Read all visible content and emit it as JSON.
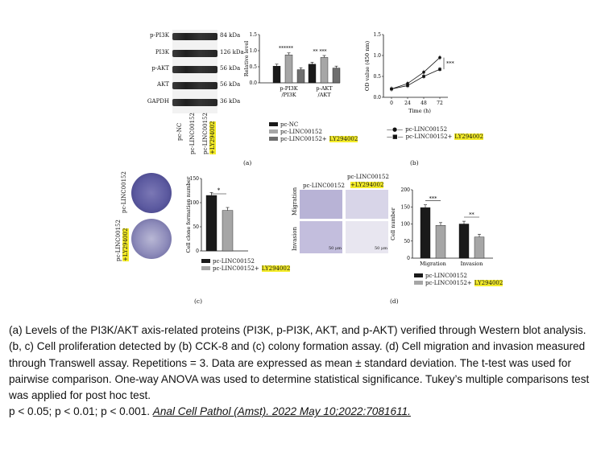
{
  "colors": {
    "black_bar": "#1a1a1a",
    "gray_bar": "#a6a6a6",
    "dark_bar": "#6e6e6e",
    "highlight": "#f4ec2a"
  },
  "panel_a": {
    "label": "(a)",
    "blots": [
      {
        "name": "p-PI3K",
        "size": "84 kDa"
      },
      {
        "name": "PI3K",
        "size": "126 kDa"
      },
      {
        "name": "p-AKT",
        "size": "56 kDa"
      },
      {
        "name": "AKT",
        "size": "56 kDa"
      },
      {
        "name": "GAPDH",
        "size": "36 kDa"
      }
    ],
    "lanes": [
      "pc-NC",
      "pc-LINC00152",
      "pc-LINC00152",
      "+LY294002"
    ],
    "legend": [
      "pc-NC",
      "pc-LINC00152",
      "pc-LINC00152+",
      "LY294002"
    ]
  },
  "panel_b": {
    "label": "(b)",
    "legend": [
      "pc-LINC00152",
      "pc-LINC00152+",
      "LY294002"
    ]
  },
  "panel_c": {
    "label": "(c)",
    "row_labels": [
      "pc-LINC00152",
      "pc-LINC00152",
      "+LY294002"
    ],
    "legend": [
      "pc-LINC00152",
      "pc-LINC00152+",
      "LY294002"
    ]
  },
  "panel_d": {
    "label": "(d)",
    "col_labels": [
      "pc-LINC00152",
      "pc-LINC00152",
      "+LY294002"
    ],
    "row_labels": [
      "Migration",
      "Invasion"
    ],
    "scale": "50 μm",
    "legend": [
      "pc-LINC00152",
      "pc-LINC00152+",
      "LY294002"
    ]
  },
  "chart_data": [
    {
      "id": "a-bar",
      "type": "bar",
      "categories": [
        "p-PI3K\n/PI3K",
        "p-AKT\n/AKT"
      ],
      "series": [
        {
          "name": "pc-NC",
          "values": [
            0.52,
            0.58
          ]
        },
        {
          "name": "pc-LINC00152",
          "values": [
            0.87,
            0.79
          ]
        },
        {
          "name": "pc-LINC00152+LY294002",
          "values": [
            0.41,
            0.46
          ]
        }
      ],
      "ylabel": "Relative level",
      "ylim": [
        0,
        1.5
      ],
      "yticks": [
        0,
        0.5,
        1.0,
        1.5
      ],
      "tick_labels": [
        "0.0",
        "0.5",
        "1.0",
        "1.5"
      ],
      "annotations": [
        "***",
        "***",
        "**",
        "***"
      ]
    },
    {
      "id": "b-line",
      "type": "line",
      "x": [
        0,
        24,
        48,
        72
      ],
      "xlabel": "Time (h)",
      "ylabel": "OD value (450 nm)",
      "ylim": [
        0,
        1.5
      ],
      "yticks": [
        0,
        0.5,
        1.0,
        1.5
      ],
      "tick_labels": [
        "0.0",
        "0.5",
        "1.0",
        "1.5"
      ],
      "series": [
        {
          "name": "pc-LINC00152",
          "values": [
            0.2,
            0.33,
            0.6,
            0.95
          ]
        },
        {
          "name": "pc-LINC00152+LY294002",
          "values": [
            0.2,
            0.28,
            0.5,
            0.67
          ]
        }
      ],
      "annotations": [
        "***"
      ]
    },
    {
      "id": "c-bar",
      "type": "bar",
      "categories": [
        "pc-LINC00152",
        "pc-LINC00152+LY294002"
      ],
      "values": [
        115,
        84
      ],
      "ylabel": "Cell clone formation number",
      "ylim": [
        0,
        150
      ],
      "yticks": [
        0,
        50,
        100,
        150
      ],
      "annotations": [
        "*"
      ]
    },
    {
      "id": "d-bar",
      "type": "bar",
      "categories": [
        "Migration",
        "Invasion"
      ],
      "series": [
        {
          "name": "pc-LINC00152",
          "values": [
            148,
            100
          ]
        },
        {
          "name": "pc-LINC00152+LY294002",
          "values": [
            96,
            62
          ]
        }
      ],
      "ylabel": "Cell number",
      "ylim": [
        0,
        200
      ],
      "yticks": [
        0,
        50,
        100,
        150,
        200
      ],
      "annotations": [
        "***",
        "**"
      ]
    }
  ],
  "caption": {
    "text": "(a) Levels of the PI3K/AKT axis-related proteins (PI3K, p-PI3K, AKT, and p-AKT) verified through Western blot analysis. (b, c) Cell proliferation detected by (b) CCK-8 and (c) colony formation assay. (d) Cell migration and invasion measured through Transwell assay. Repetitions = 3. Data are expressed as mean ± standard deviation. The t-test was used for pairwise comparison. One-way ANOVA was used to determine statistical significance. Tukey’s multiple comparisons test was applied for post hoc test.",
    "pvalues": "p < 0.05;    p < 0.01;    p < 0.001.",
    "citation": "Anal Cell Pathol (Amst). 2022 May 10;2022:7081611."
  }
}
